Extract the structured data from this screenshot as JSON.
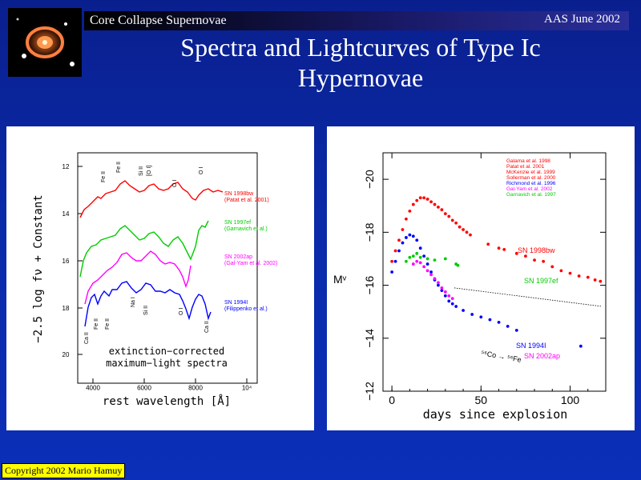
{
  "header": {
    "left_title": "Core Collapse Supernovae",
    "right_title": "AAS June 2002"
  },
  "slide": {
    "title_line1": "Spectra and Lightcurves of Type Ic",
    "title_line2": "Hypernovae"
  },
  "left_panel": {
    "ylabel": "−2.5 log fν + Constant",
    "xlabel": "rest wavelength [Å]",
    "inner_text1": "extinction−corrected",
    "inner_text2": "maximum−light spectra",
    "x_ticks": [
      "4000",
      "6000",
      "8000",
      "10⁴"
    ],
    "y_ticks": [
      "12",
      "14",
      "16",
      "18",
      "20"
    ],
    "line_ids_top": [
      "Fe II",
      "Fe II",
      "Si II",
      "[O I]",
      "O I",
      "O I"
    ],
    "line_ids_bottom": [
      "Ca II",
      "Fe II",
      "Fe II",
      "Na I",
      "Si II",
      "O I",
      "Ca II"
    ],
    "spectra": [
      {
        "name": "SN 1998bw",
        "ref": "(Patat et al. 2001)",
        "color": "#ff0000"
      },
      {
        "name": "SN 1997ef",
        "ref": "(Garnavich et al.)",
        "color": "#00cc00"
      },
      {
        "name": "SN 2002ap",
        "ref": "(Gal-Yam et al. 2002)",
        "color": "#ff00ff"
      },
      {
        "name": "SN 1994I",
        "ref": "(Filippenko et al.)",
        "color": "#0000ff"
      }
    ]
  },
  "chart_data": {
    "type": "scatter",
    "xlabel": "days since explosion",
    "ylabel": "Mᵛ",
    "xlim": [
      -5,
      120
    ],
    "ylim": [
      -12,
      -21
    ],
    "x_ticks": [
      0,
      50,
      100
    ],
    "y_ticks": [
      -20,
      -18,
      -16,
      -14,
      -12
    ],
    "annotation": "⁵⁶Co → ⁵⁶Fe",
    "references": [
      {
        "text": "Galama et al. 1998",
        "color": "#ff0000"
      },
      {
        "text": "Patat et al. 2001",
        "color": "#ff0000"
      },
      {
        "text": "McKenzie et al. 1999",
        "color": "#ff0000"
      },
      {
        "text": "Sollerman et al. 2000",
        "color": "#ff0000"
      },
      {
        "text": "Richmond et al. 1996",
        "color": "#0000ff"
      },
      {
        "text": "Gal-Yam et al. 2002",
        "color": "#ff00ff"
      },
      {
        "text": "Garnavich et al. 1997",
        "color": "#00cc00"
      }
    ],
    "series": [
      {
        "name": "SN 1998bw",
        "color": "#ff0000",
        "points": [
          [
            0,
            -16.9
          ],
          [
            2,
            -17.3
          ],
          [
            4,
            -17.7
          ],
          [
            6,
            -18.1
          ],
          [
            8,
            -18.5
          ],
          [
            10,
            -18.8
          ],
          [
            12,
            -19.05
          ],
          [
            14,
            -19.2
          ],
          [
            16,
            -19.3
          ],
          [
            18,
            -19.3
          ],
          [
            20,
            -19.25
          ],
          [
            22,
            -19.15
          ],
          [
            24,
            -19.05
          ],
          [
            26,
            -18.95
          ],
          [
            28,
            -18.85
          ],
          [
            30,
            -18.7
          ],
          [
            32,
            -18.6
          ],
          [
            34,
            -18.45
          ],
          [
            36,
            -18.35
          ],
          [
            38,
            -18.2
          ],
          [
            40,
            -18.1
          ],
          [
            42,
            -18.0
          ],
          [
            44,
            -17.9
          ],
          [
            54,
            -17.55
          ],
          [
            60,
            -17.4
          ],
          [
            63,
            -17.35
          ],
          [
            70,
            -17.2
          ],
          [
            75,
            -17.1
          ],
          [
            80,
            -16.95
          ],
          [
            85,
            -16.9
          ],
          [
            90,
            -16.7
          ],
          [
            95,
            -16.55
          ],
          [
            100,
            -16.45
          ],
          [
            105,
            -16.35
          ],
          [
            110,
            -16.3
          ],
          [
            114,
            -16.2
          ],
          [
            117,
            -16.15
          ]
        ]
      },
      {
        "name": "SN 1997ef",
        "color": "#00cc00",
        "points": [
          [
            8,
            -16.9
          ],
          [
            10,
            -17.05
          ],
          [
            12,
            -17.1
          ],
          [
            14,
            -17.2
          ],
          [
            16,
            -17.05
          ],
          [
            20,
            -17.0
          ],
          [
            24,
            -16.95
          ],
          [
            30,
            -17.0
          ],
          [
            36,
            -16.8
          ],
          [
            37,
            -16.75
          ]
        ]
      },
      {
        "name": "SN 1994I",
        "color": "#0000ff",
        "points": [
          [
            0,
            -16.5
          ],
          [
            2,
            -16.9
          ],
          [
            4,
            -17.3
          ],
          [
            6,
            -17.6
          ],
          [
            8,
            -17.8
          ],
          [
            10,
            -17.9
          ],
          [
            12,
            -17.85
          ],
          [
            14,
            -17.7
          ],
          [
            16,
            -17.4
          ],
          [
            18,
            -17.1
          ],
          [
            20,
            -16.8
          ],
          [
            22,
            -16.5
          ],
          [
            24,
            -16.2
          ],
          [
            26,
            -16.0
          ],
          [
            28,
            -15.8
          ],
          [
            30,
            -15.6
          ],
          [
            32,
            -15.4
          ],
          [
            34,
            -15.3
          ],
          [
            36,
            -15.2
          ],
          [
            40,
            -15.05
          ],
          [
            45,
            -14.9
          ],
          [
            50,
            -14.8
          ],
          [
            55,
            -14.7
          ],
          [
            60,
            -14.6
          ],
          [
            65,
            -14.45
          ],
          [
            70,
            -14.3
          ],
          [
            106,
            -13.7
          ]
        ]
      },
      {
        "name": "SN 2002ap",
        "color": "#ff00ff",
        "points": [
          [
            12,
            -16.8
          ],
          [
            14,
            -16.9
          ],
          [
            16,
            -16.85
          ],
          [
            18,
            -16.7
          ],
          [
            20,
            -16.55
          ],
          [
            22,
            -16.4
          ],
          [
            24,
            -16.25
          ],
          [
            26,
            -16.1
          ],
          [
            28,
            -15.9
          ],
          [
            30,
            -15.75
          ],
          [
            32,
            -15.6
          ],
          [
            34,
            -15.5
          ]
        ]
      }
    ],
    "decay_line": [
      [
        35,
        -15.9
      ],
      [
        118,
        -15.2
      ]
    ]
  }
}
